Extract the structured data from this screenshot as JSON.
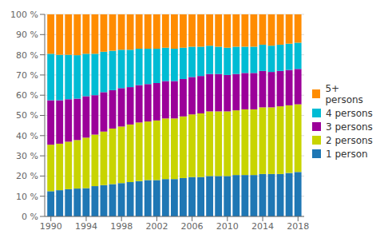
{
  "chart_data": {
    "type": "bar",
    "stacked": true,
    "grid": true,
    "legend": "right",
    "x": [
      1990,
      1991,
      1992,
      1993,
      1994,
      1995,
      1996,
      1997,
      1998,
      1999,
      2000,
      2001,
      2002,
      2003,
      2004,
      2005,
      2006,
      2007,
      2008,
      2009,
      2010,
      2011,
      2012,
      2013,
      2014,
      2015,
      2016,
      2017,
      2018
    ],
    "xlim": [
      1989.3,
      2018.7
    ],
    "xticks": [
      1990,
      1994,
      1998,
      2002,
      2006,
      2010,
      2014,
      2018
    ],
    "ylim": [
      0,
      100
    ],
    "yticks": [
      {
        "value": 0,
        "label": "0 %"
      },
      {
        "value": 10,
        "label": "10 %"
      },
      {
        "value": 20,
        "label": "20 %"
      },
      {
        "value": 30,
        "label": "30 %"
      },
      {
        "value": 40,
        "label": "40 %"
      },
      {
        "value": 50,
        "label": "50 %"
      },
      {
        "value": 60,
        "label": "60 %"
      },
      {
        "value": 70,
        "label": "70 %"
      },
      {
        "value": 80,
        "label": "80 %"
      },
      {
        "value": 90,
        "label": "90 %"
      },
      {
        "value": 100,
        "label": "100 %"
      }
    ],
    "series": [
      {
        "name": "1 person",
        "color": "#1f77b4",
        "values": [
          12.5,
          13.0,
          13.5,
          13.8,
          14.0,
          15.0,
          15.5,
          16.0,
          16.5,
          17.0,
          17.5,
          18.0,
          18.0,
          18.5,
          18.5,
          19.0,
          19.5,
          19.5,
          20.0,
          20.0,
          20.0,
          20.5,
          20.5,
          20.5,
          21.0,
          21.0,
          21.0,
          21.5,
          22.0
        ]
      },
      {
        "name": "2 persons",
        "color": "#c8d400",
        "values": [
          23.0,
          23.0,
          23.5,
          24.0,
          25.0,
          25.5,
          26.5,
          27.5,
          28.0,
          28.5,
          29.0,
          29.0,
          29.5,
          30.0,
          30.0,
          30.5,
          31.0,
          31.5,
          32.0,
          32.0,
          32.0,
          32.0,
          32.5,
          32.5,
          33.0,
          33.0,
          33.5,
          33.5,
          33.5
        ]
      },
      {
        "name": "3 persons",
        "color": "#9b0099",
        "values": [
          22.0,
          21.5,
          21.0,
          20.5,
          20.5,
          19.5,
          19.5,
          19.0,
          19.0,
          18.5,
          18.5,
          18.5,
          18.5,
          18.5,
          18.5,
          18.5,
          18.5,
          18.5,
          18.5,
          18.5,
          18.0,
          18.0,
          18.0,
          18.0,
          18.0,
          17.5,
          17.5,
          17.5,
          17.5
        ]
      },
      {
        "name": "4 persons",
        "color": "#00bcd4",
        "values": [
          23.0,
          22.5,
          22.0,
          21.5,
          21.0,
          20.5,
          20.0,
          19.5,
          19.0,
          18.5,
          18.0,
          17.5,
          17.0,
          16.5,
          16.0,
          15.5,
          15.0,
          14.5,
          14.0,
          13.5,
          13.5,
          13.5,
          13.0,
          13.0,
          13.0,
          13.0,
          13.0,
          13.0,
          13.0
        ]
      },
      {
        "name": "5+ persons",
        "color": "#ff8c00",
        "values": [
          19.5,
          20.0,
          20.0,
          20.2,
          19.5,
          19.5,
          18.5,
          18.0,
          17.5,
          17.5,
          17.0,
          17.0,
          17.0,
          16.5,
          17.0,
          16.5,
          16.0,
          16.0,
          15.5,
          16.0,
          16.5,
          16.0,
          16.0,
          16.0,
          15.0,
          15.5,
          15.0,
          14.5,
          14.0
        ]
      }
    ]
  }
}
